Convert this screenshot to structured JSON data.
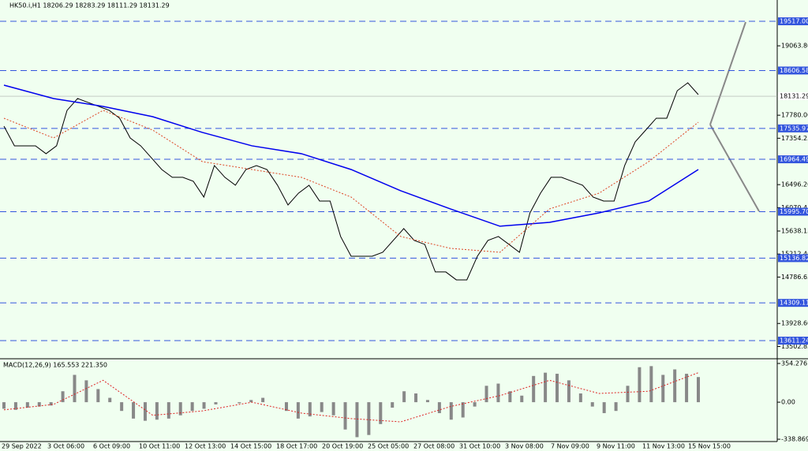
{
  "chart_data": [
    {
      "type": "line",
      "title": "HK50.i,H1  18206.29 18283.29 18111.29 18131.29",
      "ylim": [
        13276,
        19911
      ],
      "yticks": [
        {
          "value": 19063.8,
          "label": "19063.80"
        },
        {
          "value": 17780,
          "label": "17780.00"
        },
        17354.25,
        {
          "value": 16496.2,
          "label": "16496.20"
        },
        16070.45,
        15638.15,
        {
          "value": 15212.4,
          "label": "15212.40"
        },
        14786.65,
        {
          "value": 13928.6,
          "label": "13928.60"
        },
        13502.85
      ],
      "levels": [
        {
          "value": 19517,
          "label": "19517.00"
        },
        18606.58,
        17535.97,
        16964.49,
        {
          "value": 15995.7,
          "label": "15995.70"
        },
        15136.82,
        14309.11,
        13611.24
      ],
      "level_color": "#3355dd",
      "current_price": 18131.29,
      "time_labels": [
        "29 Sep 2022",
        "3 Oct 06:00",
        "6 Oct 09:00",
        "10 Oct 11:00",
        "12 Oct 13:00",
        "14 Oct 15:00",
        "18 Oct 17:00",
        "20 Oct 19:00",
        "25 Oct 05:00",
        "27 Oct 08:00",
        "31 Oct 10:00",
        "3 Nov 08:00",
        "7 Nov 09:00",
        "9 Nov 11:00",
        "11 Nov 13:00",
        "15 Nov 15:00"
      ],
      "series": [
        {
          "color": "#000000",
          "values": [
            17578,
            17214,
            17214,
            17214,
            17068,
            17214,
            17870,
            18089,
            18016,
            17943,
            17870,
            17724,
            17359,
            17214,
            16995,
            16776,
            16631,
            16631,
            16558,
            16266,
            16849,
            16631,
            16485,
            16776,
            16849,
            16776,
            16485,
            16120,
            16339,
            16485,
            16193,
            16193,
            15537,
            15172,
            15172,
            15172,
            15245,
            15464,
            15683,
            15464,
            15391,
            14881,
            14881,
            14735,
            14735,
            15172,
            15464,
            15537,
            15391,
            15245,
            15974,
            16339,
            16631,
            16631,
            16558,
            16485,
            16266,
            16193,
            16193,
            16849,
            17287,
            17505,
            17724,
            17724,
            18234,
            18380,
            18161
          ]
        },
        {
          "color": "#0000ee",
          "values": [
            18336,
            18088,
            17943,
            17753,
            17462,
            17214,
            17068,
            16776,
            16383,
            16047,
            15727,
            15799,
            15974,
            16193,
            16776
          ]
        },
        {
          "color": "#dd4422",
          "dashed": true,
          "values": [
            17724,
            17359,
            17870,
            17505,
            16922,
            16776,
            16631,
            16266,
            15537,
            15318,
            15245,
            16047,
            16339,
            16922,
            17651
          ]
        }
      ]
    },
    {
      "type": "macd",
      "title": "MACD(12,26,9) 165.553 221.350",
      "ylim": [
        -360,
        383
      ],
      "yticks": [
        354.276,
        {
          "value": 0,
          "label": "0.00"
        },
        -338.869
      ],
      "histogram": {
        "color": "#888888",
        "values": [
          -60,
          -70,
          -50,
          -40,
          -30,
          100,
          250,
          200,
          120,
          40,
          -80,
          -150,
          -170,
          -160,
          -150,
          -120,
          -80,
          -60,
          -20,
          0,
          -10,
          20,
          40,
          0,
          -80,
          -150,
          -130,
          -90,
          -120,
          -250,
          -320,
          -300,
          -200,
          -50,
          100,
          80,
          20,
          -100,
          -160,
          -140,
          -40,
          150,
          170,
          100,
          60,
          240,
          270,
          260,
          200,
          80,
          -40,
          -100,
          -80,
          150,
          320,
          330,
          250,
          300,
          260,
          230
        ]
      },
      "signal": {
        "color": "#dd2222",
        "values": [
          -70,
          -20,
          200,
          -120,
          -80,
          0,
          -100,
          -150,
          -180,
          -40,
          60,
          200,
          80,
          100,
          270
        ]
      }
    }
  ]
}
